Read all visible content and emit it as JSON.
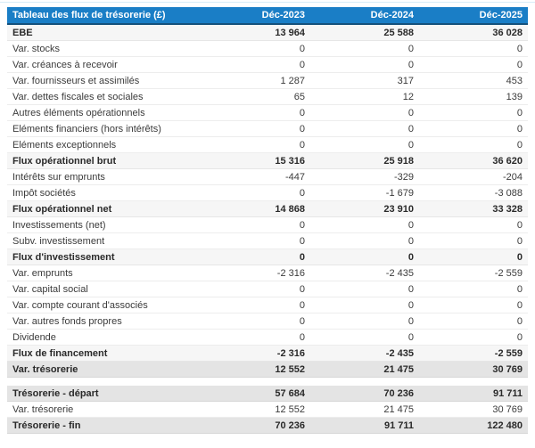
{
  "table": {
    "title": "Tableau des flux de trésorerie (£)",
    "columns": [
      "Déc-2023",
      "Déc-2024",
      "Déc-2025"
    ],
    "rows": [
      {
        "label": "EBE",
        "values": [
          "13 964",
          "25 588",
          "36 028"
        ],
        "style": "subtotal"
      },
      {
        "label": "Var. stocks",
        "values": [
          "0",
          "0",
          "0"
        ],
        "style": "normal"
      },
      {
        "label": "Var. créances à recevoir",
        "values": [
          "0",
          "0",
          "0"
        ],
        "style": "normal"
      },
      {
        "label": "Var. fournisseurs et assimilés",
        "values": [
          "1 287",
          "317",
          "453"
        ],
        "style": "normal"
      },
      {
        "label": "Var. dettes fiscales et sociales",
        "values": [
          "65",
          "12",
          "139"
        ],
        "style": "normal"
      },
      {
        "label": "Autres éléments opérationnels",
        "values": [
          "0",
          "0",
          "0"
        ],
        "style": "normal"
      },
      {
        "label": "Eléments financiers (hors intérêts)",
        "values": [
          "0",
          "0",
          "0"
        ],
        "style": "normal"
      },
      {
        "label": "Eléments exceptionnels",
        "values": [
          "0",
          "0",
          "0"
        ],
        "style": "normal"
      },
      {
        "label": "Flux opérationnel brut",
        "values": [
          "15 316",
          "25 918",
          "36 620"
        ],
        "style": "subtotal"
      },
      {
        "label": "Intérêts sur emprunts",
        "values": [
          "-447",
          "-329",
          "-204"
        ],
        "style": "normal"
      },
      {
        "label": "Impôt sociétés",
        "values": [
          "0",
          "-1 679",
          "-3 088"
        ],
        "style": "normal"
      },
      {
        "label": "Flux opérationnel net",
        "values": [
          "14 868",
          "23 910",
          "33 328"
        ],
        "style": "subtotal"
      },
      {
        "label": "Investissements (net)",
        "values": [
          "0",
          "0",
          "0"
        ],
        "style": "normal"
      },
      {
        "label": "Subv. investissement",
        "values": [
          "0",
          "0",
          "0"
        ],
        "style": "normal"
      },
      {
        "label": "Flux d'investissement",
        "values": [
          "0",
          "0",
          "0"
        ],
        "style": "subtotal"
      },
      {
        "label": "Var. emprunts",
        "values": [
          "-2 316",
          "-2 435",
          "-2 559"
        ],
        "style": "normal"
      },
      {
        "label": "Var. capital social",
        "values": [
          "0",
          "0",
          "0"
        ],
        "style": "normal"
      },
      {
        "label": "Var. compte courant d'associés",
        "values": [
          "0",
          "0",
          "0"
        ],
        "style": "normal"
      },
      {
        "label": "Var. autres fonds propres",
        "values": [
          "0",
          "0",
          "0"
        ],
        "style": "normal"
      },
      {
        "label": "Dividende",
        "values": [
          "0",
          "0",
          "0"
        ],
        "style": "normal"
      },
      {
        "label": "Flux de financement",
        "values": [
          "-2 316",
          "-2 435",
          "-2 559"
        ],
        "style": "subtotal"
      },
      {
        "label": "Var. trésorerie",
        "values": [
          "12 552",
          "21 475",
          "30 769"
        ],
        "style": "total"
      },
      {
        "label": "Trésorerie - départ",
        "values": [
          "57 684",
          "70 236",
          "91 711"
        ],
        "style": "total",
        "gap_before": true
      },
      {
        "label": "Var. trésorerie",
        "values": [
          "12 552",
          "21 475",
          "30 769"
        ],
        "style": "normal"
      },
      {
        "label": "Trésorerie - fin",
        "values": [
          "70 236",
          "91 711",
          "122 480"
        ],
        "style": "total"
      }
    ]
  },
  "colors": {
    "header_bg": "#1a7ec6",
    "header_text": "#ffffff",
    "subtotal_bg": "#f6f6f6",
    "total_bg": "#e4e4e4",
    "body_text": "#3b3b3b"
  }
}
